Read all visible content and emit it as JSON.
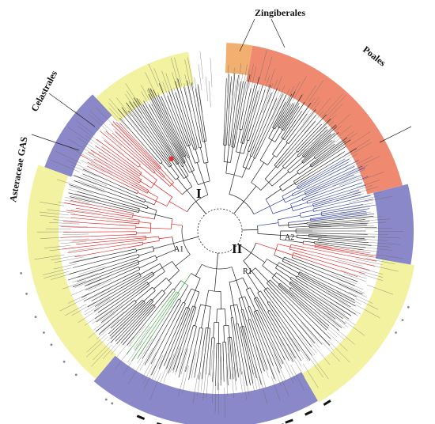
{
  "title": "",
  "labels": {
    "zingiberales": "Zingiberales",
    "poales": "Poales",
    "celastrales": "Celastrales",
    "asteraceae": "Asteraceae GAS",
    "clade_I": "I",
    "clade_II": "II",
    "group_A1": "A1",
    "group_A2": "A2",
    "group_R1": "R1"
  },
  "colors": {
    "yellow": "#f2f2a0",
    "blue": "#8a88c8",
    "salmon": "#ef8a70",
    "orange": "#f2b070",
    "branch": "#222222",
    "red_branch": "#e02020",
    "blue_branch": "#3040a0",
    "green_branch": "#40a040",
    "node_marker": "#e03030",
    "marker_black": "#111111",
    "marker_grey": "#888888"
  },
  "highlight_bands": [
    {
      "name": "yellow-band-1",
      "color": "yellow"
    },
    {
      "name": "blue-band-celastrales",
      "color": "blue"
    },
    {
      "name": "yellow-band-asteraceae",
      "color": "yellow"
    },
    {
      "name": "blue-band-bottom",
      "color": "blue"
    },
    {
      "name": "yellow-band-right",
      "color": "yellow"
    },
    {
      "name": "blue-band-right",
      "color": "blue"
    },
    {
      "name": "salmon-band-poales",
      "color": "salmon"
    },
    {
      "name": "orange-band-zingiberales",
      "color": "orange"
    }
  ]
}
